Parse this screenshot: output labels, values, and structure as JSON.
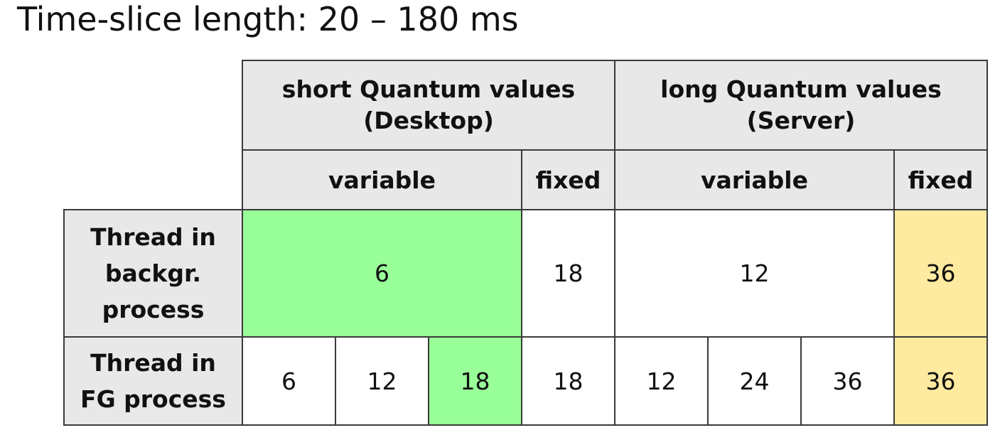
{
  "title": "Time-slice length: 20 – 180 ms",
  "table": {
    "groups": [
      {
        "line1": "short Quantum values",
        "line2": "(Desktop)"
      },
      {
        "line1": "long Quantum values",
        "line2": "(Server)"
      }
    ],
    "subheaders": {
      "short_variable": "variable",
      "short_fixed": "fixed",
      "long_variable": "variable",
      "long_fixed": "fixed"
    },
    "rows": {
      "background": {
        "label": [
          "Thread in",
          "backgr.",
          "process"
        ],
        "short_variable": "6",
        "short_fixed": "18",
        "long_variable": "12",
        "long_fixed": "36"
      },
      "foreground": {
        "label": [
          "Thread in",
          "FG process"
        ],
        "short_variable": [
          "6",
          "12",
          "18"
        ],
        "short_fixed": "18",
        "long_variable": [
          "12",
          "24",
          "36"
        ],
        "long_fixed": "36"
      }
    },
    "colors": {
      "header_bg": "#e8e8e8",
      "highlight_green": "#99ff99",
      "highlight_yellow": "#ffeba0",
      "border": "#3a3a3a"
    }
  }
}
